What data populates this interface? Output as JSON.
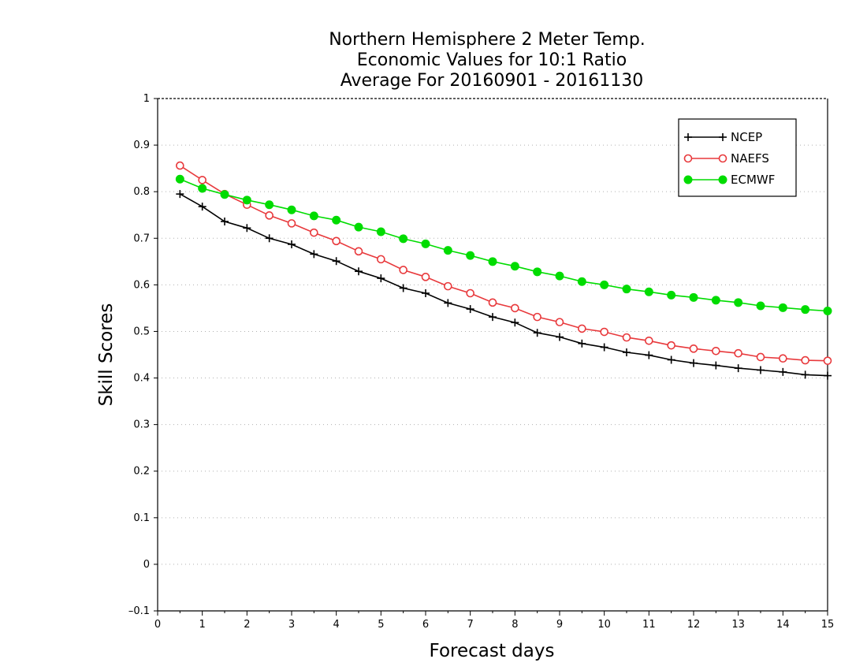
{
  "chart_data": {
    "type": "line",
    "title_lines": [
      "Northern Hemisphere 2 Meter Temp.",
      "Economic Values for 10:1 Ratio",
      "Average For 20160901 - 20161130"
    ],
    "xlabel": "Forecast days",
    "ylabel": "Skill Scores",
    "xlim": [
      0,
      15
    ],
    "ylim": [
      -0.1,
      1
    ],
    "xticks": [
      "0",
      "1",
      "2",
      "3",
      "4",
      "5",
      "6",
      "7",
      "8",
      "9",
      "10",
      "11",
      "12",
      "13",
      "14",
      "15"
    ],
    "yticks": [
      "–0.1",
      "0",
      "0.1",
      "0.2",
      "0.3",
      "0.4",
      "0.5",
      "0.6",
      "0.7",
      "0.8",
      "0.9",
      "1"
    ],
    "grid": "horizontal dotted",
    "legend_position": "top-right",
    "x": [
      0.5,
      1,
      1.5,
      2,
      2.5,
      3,
      3.5,
      4,
      4.5,
      5,
      5.5,
      6,
      6.5,
      7,
      7.5,
      8,
      8.5,
      9,
      9.5,
      10,
      10.5,
      11,
      11.5,
      12,
      12.5,
      13,
      13.5,
      14,
      14.5,
      15
    ],
    "series": [
      {
        "name": "NCEP",
        "color": "#000000",
        "marker": "plus",
        "values": [
          0.795,
          0.768,
          0.736,
          0.722,
          0.7,
          0.687,
          0.666,
          0.651,
          0.629,
          0.614,
          0.593,
          0.582,
          0.561,
          0.548,
          0.531,
          0.519,
          0.497,
          0.488,
          0.474,
          0.466,
          0.455,
          0.449,
          0.439,
          0.432,
          0.427,
          0.421,
          0.417,
          0.413,
          0.407,
          0.405
        ]
      },
      {
        "name": "NAEFS",
        "color": "#e8393c",
        "marker": "open-circle",
        "values": [
          0.856,
          0.825,
          0.795,
          0.772,
          0.749,
          0.732,
          0.712,
          0.694,
          0.672,
          0.655,
          0.632,
          0.617,
          0.597,
          0.582,
          0.562,
          0.55,
          0.531,
          0.52,
          0.506,
          0.499,
          0.487,
          0.48,
          0.47,
          0.463,
          0.458,
          0.453,
          0.445,
          0.442,
          0.438,
          0.437
        ]
      },
      {
        "name": "ECMWF",
        "color": "#00dc00",
        "marker": "filled-circle",
        "values": [
          0.827,
          0.807,
          0.794,
          0.782,
          0.772,
          0.761,
          0.748,
          0.739,
          0.724,
          0.714,
          0.699,
          0.688,
          0.674,
          0.663,
          0.65,
          0.64,
          0.628,
          0.619,
          0.607,
          0.6,
          0.591,
          0.585,
          0.578,
          0.573,
          0.567,
          0.562,
          0.555,
          0.551,
          0.547,
          0.544
        ]
      }
    ]
  }
}
